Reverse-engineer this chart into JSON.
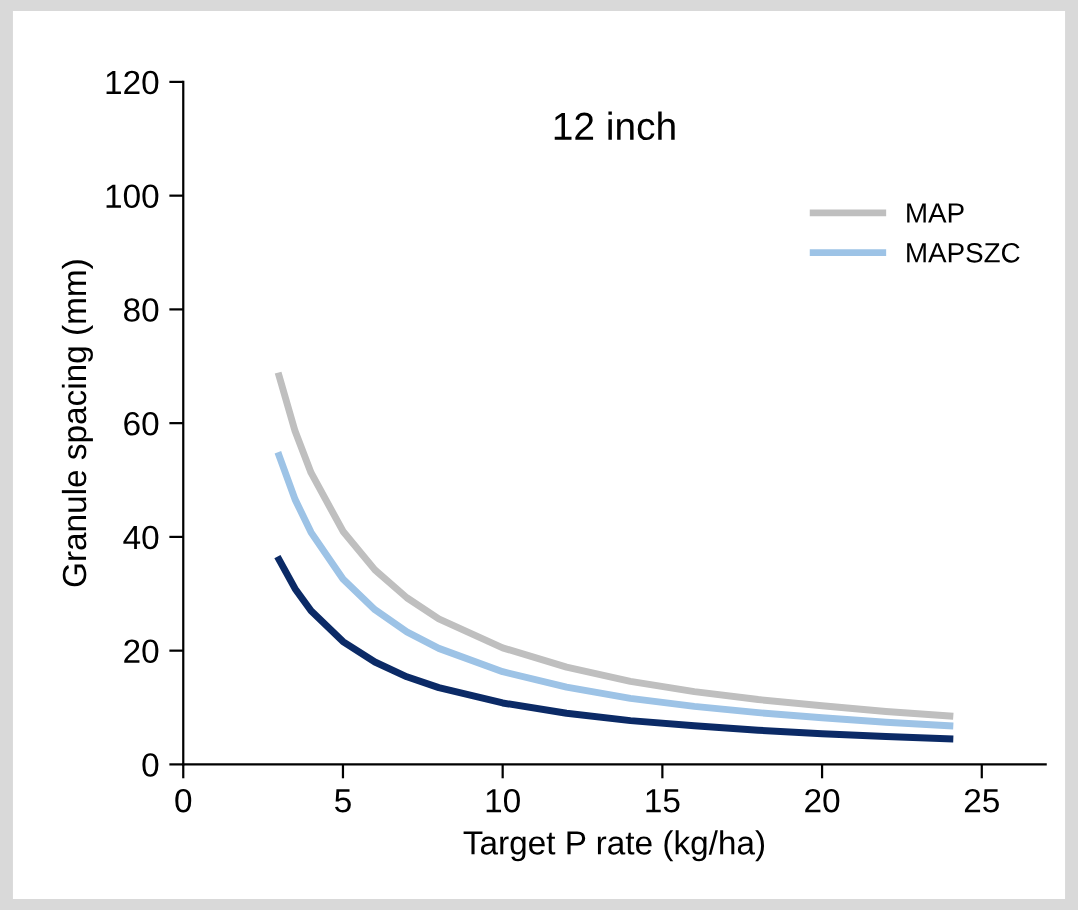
{
  "chart_data": {
    "type": "line",
    "xlabel": "Target P rate (kg/ha)",
    "ylabel": "Granule spacing (mm)",
    "annotations": [
      "12 inch"
    ],
    "x": [
      3,
      3.5,
      4,
      5,
      6,
      7,
      8,
      10,
      12,
      14,
      16,
      18,
      20,
      22,
      24
    ],
    "series": [
      {
        "color": "#0b2a66",
        "values": [
          36,
          30.9,
          27,
          21.6,
          18,
          15.4,
          13.5,
          10.8,
          9,
          7.7,
          6.8,
          6,
          5.4,
          4.9,
          4.5
        ]
      },
      {
        "name": "MAP",
        "color": "#bfbfbf",
        "values": [
          68.3,
          58.6,
          51.3,
          41,
          34.2,
          29.3,
          25.6,
          20.5,
          17.1,
          14.6,
          12.8,
          11.4,
          10.3,
          9.3,
          8.5
        ]
      },
      {
        "name": "MAPSZC",
        "color": "#9dc3e6",
        "values": [
          54.3,
          46.6,
          40.8,
          32.6,
          27.2,
          23.3,
          20.4,
          16.3,
          13.6,
          11.6,
          10.2,
          9.1,
          8.2,
          7.4,
          6.8
        ]
      }
    ],
    "xlim": [
      0,
      27
    ],
    "xticks": [
      0,
      5,
      10,
      15,
      20,
      25
    ],
    "ylim": [
      0,
      120
    ],
    "yticks": [
      0,
      20,
      40,
      60,
      80,
      100,
      120
    ],
    "grid": false,
    "legend": "top right",
    "marker": "none",
    "line_style": "solid"
  }
}
